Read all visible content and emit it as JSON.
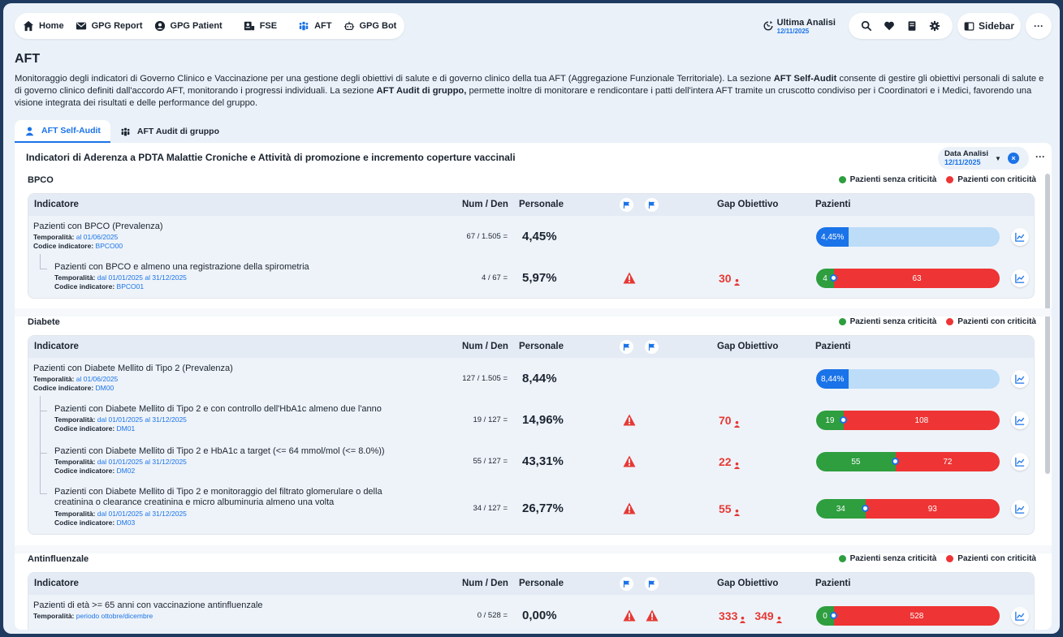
{
  "nav": {
    "items": [
      {
        "label": "Home",
        "icon": "home-icon"
      },
      {
        "label": "GPG Report",
        "icon": "mail-icon"
      },
      {
        "label": "GPG Patient",
        "icon": "user-circle-icon"
      },
      {
        "label": "FSE",
        "icon": "id-card-icon"
      },
      {
        "label": "AFT",
        "icon": "group-icon"
      },
      {
        "label": "GPG Bot",
        "icon": "robot-icon"
      }
    ],
    "ultima_label": "Ultima Analisi",
    "ultima_date": "12/11/2025",
    "sidebar_label": "Sidebar",
    "more_label": "···"
  },
  "page": {
    "title": "AFT",
    "desc_1": "Monitoraggio degli indicatori di Governo Clinico e Vaccinazione per una gestione degli obiettivi di salute e di governo clinico della tua AFT (Aggregazione Funzionale Territoriale). La sezione ",
    "desc_b1": "AFT Self-Audit",
    "desc_2": " consente di gestire gli obiettivi personali di salute e di governo clinico definiti dall'accordo AFT, monitorando i progressi individuali. La sezione ",
    "desc_b2": "AFT Audit di gruppo,",
    "desc_3": " permette inoltre di monitorare e rendicontare i patti dell'intera AFT tramite un cruscotto condiviso per i Coordinatori e i Medici, favorendo una visione integrata dei risultati e delle performance del gruppo."
  },
  "tabs": [
    {
      "label": "AFT Self-Audit"
    },
    {
      "label": "AFT Audit di gruppo"
    }
  ],
  "card": {
    "title": "Indicatori di Aderenza a PDTA Malattie Croniche e Attività di promozione e incremento coperture vaccinali",
    "data_label": "Data Analisi",
    "data_date": "12/11/2025",
    "more": "···"
  },
  "labels": {
    "col_indicatore": "Indicatore",
    "col_numden": "Num / Den",
    "col_personale": "Personale",
    "col_gap": "Gap Obiettivo",
    "col_pazienti": "Pazienti",
    "legend_green": "Pazienti senza criticità",
    "legend_red": "Pazienti con criticità",
    "temporalita": "Temporalità:",
    "codice": "Codice indicatore:",
    "eq": "="
  },
  "colors": {
    "green": "#2e9e3f",
    "red": "#ee3434",
    "blue": "#1a73e8",
    "lightblue": "#bcdcf8"
  },
  "sections": [
    {
      "title": "BPCO",
      "rows": [
        {
          "name": "Pazienti con BPCO (Prevalenza)",
          "temp": "al 01/06/2025",
          "code": "BPCO00",
          "numden": "67 / 1.505",
          "pers": "4,45%",
          "type": "prevalence",
          "fill": 0.0445,
          "bar_label": "4,45%"
        },
        {
          "name": "Pazienti con BPCO e almeno una registrazione della spirometria",
          "temp": "dal 01/01/2025 al 31/12/2025",
          "code": "BPCO01",
          "numden": "4 / 67",
          "pers": "5,97%",
          "type": "split",
          "green": 4,
          "red": 63,
          "gap": "30",
          "warn": 1
        }
      ]
    },
    {
      "title": "Diabete",
      "rows": [
        {
          "name": "Pazienti con Diabete Mellito di Tipo 2 (Prevalenza)",
          "temp": "al 01/06/2025",
          "code": "DM00",
          "numden": "127 / 1.505",
          "pers": "8,44%",
          "type": "prevalence",
          "fill": 0.0844,
          "bar_label": "8,44%"
        },
        {
          "name": "Pazienti con Diabete Mellito di Tipo 2 e con controllo dell'HbA1c almeno due l'anno",
          "temp": "dal 01/01/2025 al 31/12/2025",
          "code": "DM01",
          "numden": "19 / 127",
          "pers": "14,96%",
          "type": "split",
          "green": 19,
          "red": 108,
          "gap": "70",
          "warn": 1
        },
        {
          "name": "Pazienti con Diabete Mellito di Tipo 2 e HbA1c a target (<= 64 mmol/mol (<= 8.0%))",
          "temp": "dal 01/01/2025 al 31/12/2025",
          "code": "DM02",
          "numden": "55 / 127",
          "pers": "43,31%",
          "type": "split",
          "green": 55,
          "red": 72,
          "gap": "22",
          "warn": 1
        },
        {
          "name": "Pazienti con Diabete Mellito di Tipo 2 e monitoraggio del filtrato glomerulare o della",
          "name2": "creatinina o clearance creatinina e micro albuminuria almeno una volta",
          "temp": "dal 01/01/2025 al 31/12/2025",
          "code": "DM03",
          "numden": "34 / 127",
          "pers": "26,77%",
          "type": "split",
          "green": 34,
          "red": 93,
          "gap": "55",
          "warn": 1
        }
      ]
    },
    {
      "title": "Antinfluenzale",
      "rows": [
        {
          "name": "Pazienti di età >= 65 anni con vaccinazione antinfluenzale",
          "temp": "periodo ottobre/dicembre",
          "numden": "0 / 528",
          "pers": "0,00%",
          "type": "split",
          "green": 0,
          "red": 528,
          "gap": "333",
          "gap2": "349",
          "warn": 2
        }
      ]
    }
  ]
}
